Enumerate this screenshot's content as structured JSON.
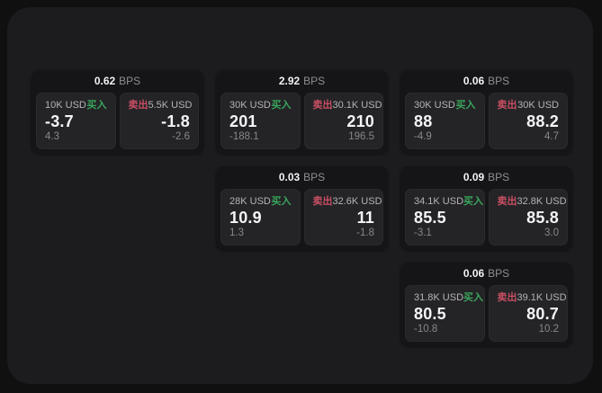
{
  "labels": {
    "bps": "BPS",
    "buy": "买入",
    "sell": "卖出"
  },
  "colors": {
    "buy_green": "#3aa55b",
    "sell_red": "#c94f63",
    "panel_bg": "#1c1c1e",
    "card_bg": "#151517",
    "tile_bg": "#242427",
    "value_white": "#f5f5f6",
    "muted_gray": "#8f8f91"
  },
  "cards": [
    {
      "bps": "0.62",
      "buy": {
        "size": "10K USD",
        "price": "-3.7",
        "delta": "4.3"
      },
      "sell": {
        "size": "5.5K USD",
        "price": "-1.8",
        "delta": "-2.6"
      }
    },
    {
      "bps": "2.92",
      "buy": {
        "size": "30K USD",
        "price": "201",
        "delta": "-188.1"
      },
      "sell": {
        "size": "30.1K USD",
        "price": "210",
        "delta": "196.5"
      }
    },
    {
      "bps": "0.06",
      "buy": {
        "size": "30K USD",
        "price": "88",
        "delta": "-4.9"
      },
      "sell": {
        "size": "30K USD",
        "price": "88.2",
        "delta": "4.7"
      }
    },
    {
      "bps": "0.03",
      "buy": {
        "size": "28K USD",
        "price": "10.9",
        "delta": "1.3"
      },
      "sell": {
        "size": "32.6K USD",
        "price": "11",
        "delta": "-1.8"
      }
    },
    {
      "bps": "0.09",
      "buy": {
        "size": "34.1K USD",
        "price": "85.5",
        "delta": "-3.1"
      },
      "sell": {
        "size": "32.8K USD",
        "price": "85.8",
        "delta": "3.0"
      }
    },
    {
      "bps": "0.06",
      "buy": {
        "size": "31.8K USD",
        "price": "80.5",
        "delta": "-10.8"
      },
      "sell": {
        "size": "39.1K USD",
        "price": "80.7",
        "delta": "10.2"
      }
    }
  ]
}
